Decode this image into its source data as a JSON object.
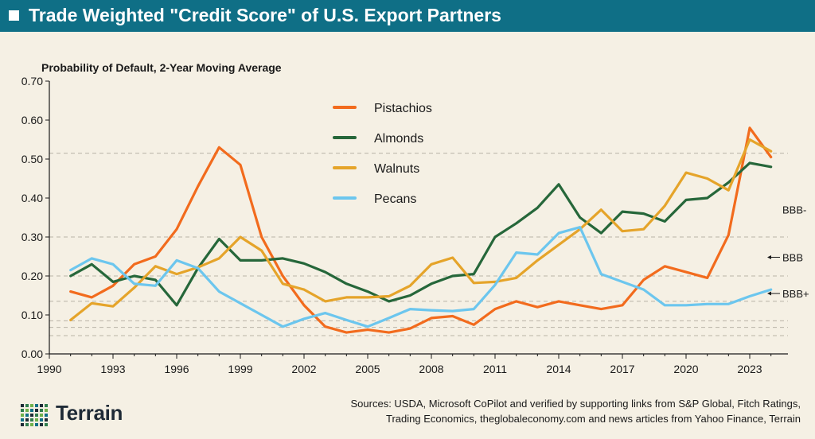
{
  "header": {
    "title": "Trade Weighted \"Credit Score\" of U.S. Export Partners"
  },
  "chart_data": {
    "type": "line",
    "ylabel": "Probability of Default, 2-Year Moving Average",
    "xlim": [
      1990,
      2024.8
    ],
    "ylim": [
      0,
      0.7
    ],
    "xticks": [
      1990,
      1993,
      1996,
      1999,
      2002,
      2005,
      2008,
      2011,
      2014,
      2017,
      2020,
      2023
    ],
    "yticks": [
      "0.00",
      "0.10",
      "0.20",
      "0.30",
      "0.40",
      "0.50",
      "0.60",
      "0.70"
    ],
    "x": [
      1991,
      1992,
      1993,
      1994,
      1995,
      1996,
      1997,
      1998,
      1999,
      2000,
      2001,
      2002,
      2003,
      2004,
      2005,
      2006,
      2007,
      2008,
      2009,
      2010,
      2011,
      2012,
      2013,
      2014,
      2015,
      2016,
      2017,
      2018,
      2019,
      2020,
      2021,
      2022,
      2023,
      2024
    ],
    "series": [
      {
        "name": "Pistachios",
        "color": "#f26b1d",
        "values": [
          0.16,
          0.145,
          0.175,
          0.23,
          0.25,
          0.32,
          0.43,
          0.53,
          0.485,
          0.3,
          0.2,
          0.125,
          0.07,
          0.055,
          0.062,
          0.055,
          0.065,
          0.092,
          0.097,
          0.075,
          0.115,
          0.135,
          0.12,
          0.135,
          0.125,
          0.115,
          0.125,
          0.19,
          0.225,
          0.21,
          0.195,
          0.305,
          0.58,
          0.505
        ]
      },
      {
        "name": "Almonds",
        "color": "#26673a",
        "values": [
          0.2,
          0.23,
          0.185,
          0.2,
          0.19,
          0.125,
          0.22,
          0.295,
          0.24,
          0.24,
          0.245,
          0.232,
          0.21,
          0.18,
          0.16,
          0.135,
          0.15,
          0.18,
          0.2,
          0.205,
          0.3,
          0.335,
          0.375,
          0.435,
          0.35,
          0.31,
          0.365,
          0.36,
          0.34,
          0.395,
          0.4,
          0.44,
          0.49,
          0.48
        ]
      },
      {
        "name": "Walnuts",
        "color": "#e5a42a",
        "values": [
          0.087,
          0.13,
          0.122,
          0.17,
          0.225,
          0.205,
          0.222,
          0.245,
          0.3,
          0.265,
          0.18,
          0.165,
          0.135,
          0.145,
          0.145,
          0.148,
          0.175,
          0.23,
          0.247,
          0.182,
          0.185,
          0.195,
          0.24,
          0.28,
          0.32,
          0.37,
          0.315,
          0.32,
          0.38,
          0.465,
          0.45,
          0.42,
          0.55,
          0.52
        ]
      },
      {
        "name": "Pecans",
        "color": "#6cc6ee",
        "values": [
          0.215,
          0.245,
          0.23,
          0.18,
          0.175,
          0.24,
          0.22,
          0.16,
          0.13,
          0.1,
          0.07,
          0.09,
          0.105,
          0.087,
          0.07,
          0.092,
          0.115,
          0.112,
          0.11,
          0.115,
          0.177,
          0.26,
          0.255,
          0.31,
          0.325,
          0.205,
          0.185,
          0.165,
          0.125,
          0.125,
          0.128,
          0.128,
          0.148,
          0.165
        ]
      }
    ],
    "reference_lines": [
      0.515,
      0.3,
      0.2,
      0.135,
      0.085,
      0.068,
      0.047
    ],
    "rating_labels": [
      {
        "label": "BBB-",
        "value": 0.37,
        "arrow": false
      },
      {
        "label": "BBB",
        "value": 0.248,
        "arrow": true
      },
      {
        "label": "BBB+",
        "value": 0.155,
        "arrow": true
      }
    ],
    "legend_position": "upper-center",
    "grid": false
  },
  "footer": {
    "sources_line1": "Sources: USDA, Microsoft CoPilot and verified by supporting links from S&P Global, Fitch Ratings,",
    "sources_line2": "Trading Economics, theglobaleconomy.com and news articles from Yahoo Finance, Terrain",
    "logo_text": "Terrain",
    "logo_colors": [
      "#1e2a36",
      "#2f7d4e",
      "#6fb04a",
      "#0f6f86"
    ]
  }
}
